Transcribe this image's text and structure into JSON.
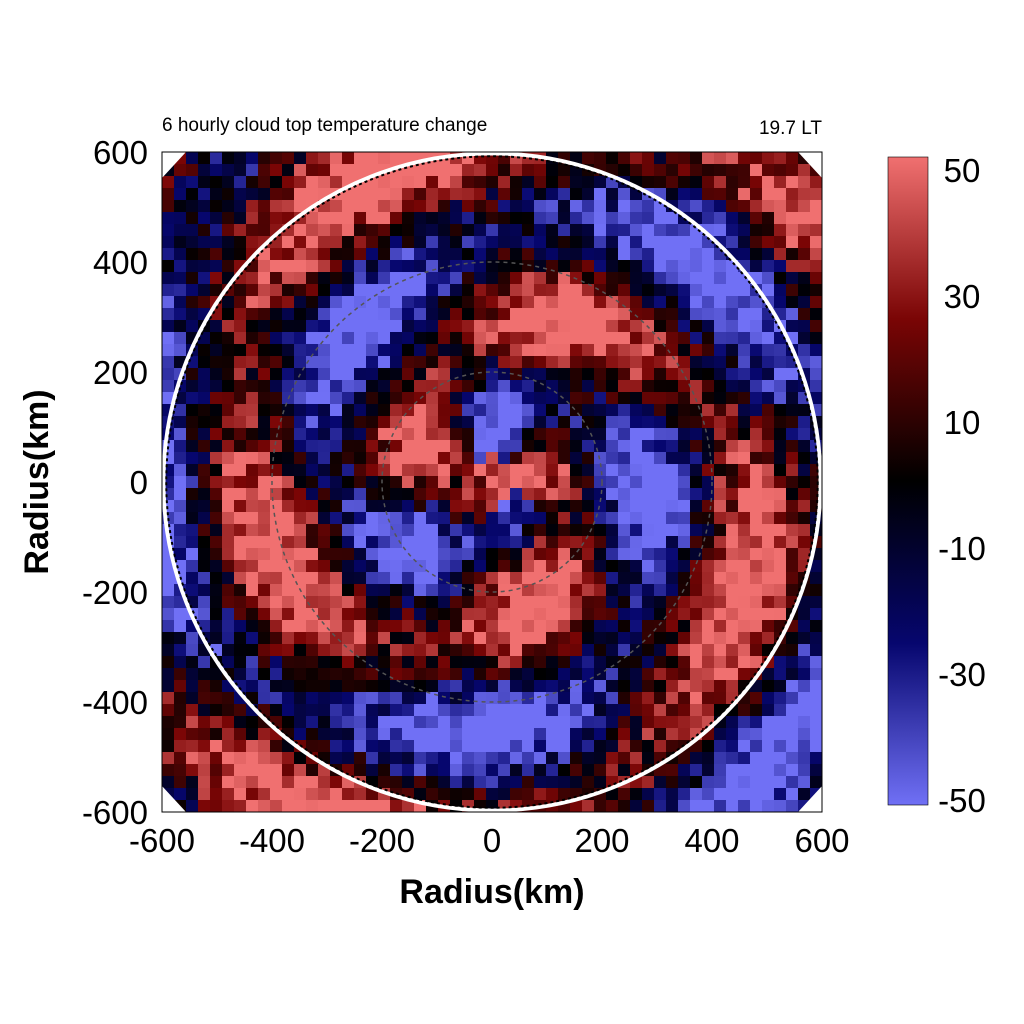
{
  "chart_data": {
    "type": "heatmap",
    "title": "6 hourly cloud top temperature change",
    "subtitle": "19.7 LT",
    "xlabel": "Radius(km)",
    "ylabel": "Radius(km)",
    "xlim": [
      -600,
      600
    ],
    "ylim": [
      -600,
      600
    ],
    "x_ticks": [
      "-600",
      "-400",
      "-200",
      "0",
      "200",
      "400",
      "600"
    ],
    "y_ticks": [
      "600",
      "400",
      "200",
      "0",
      "-200",
      "-400",
      "-600"
    ],
    "colorbar": {
      "range": [
        -50,
        50
      ],
      "ticks": [
        "50",
        "30",
        "10",
        "-10",
        "-30",
        "-50"
      ],
      "colors": [
        "#7070f5",
        "#06066e",
        "#000000",
        "#7a0505",
        "#f07070"
      ]
    },
    "circles_km": {
      "outer_solid": 600,
      "outer_dashed": 595,
      "inner_dashed": [
        400,
        200
      ]
    },
    "field_description": "spiral pattern of positive (red) and negative (blue) temperature change",
    "grid": false
  }
}
